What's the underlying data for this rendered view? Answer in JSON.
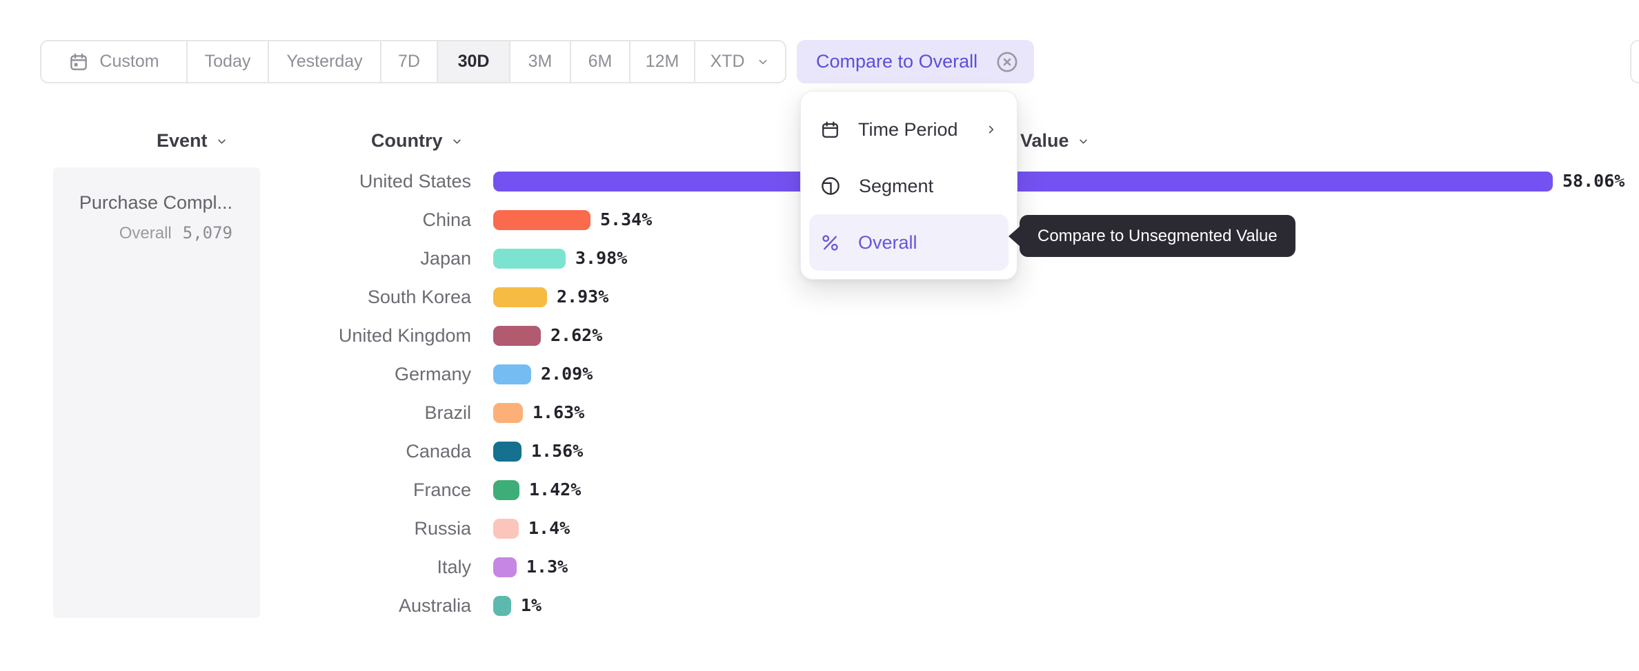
{
  "toolbar": {
    "ranges": [
      {
        "label": "Custom",
        "icon": "calendar"
      },
      {
        "label": "Today"
      },
      {
        "label": "Yesterday"
      },
      {
        "label": "7D"
      },
      {
        "label": "30D",
        "selected": true
      },
      {
        "label": "3M"
      },
      {
        "label": "6M"
      },
      {
        "label": "12M"
      },
      {
        "label": "XTD",
        "chevron": true
      }
    ],
    "compare_pill_label": "Compare to Overall"
  },
  "menu": {
    "items": [
      {
        "icon": "calendar",
        "label": "Time Period",
        "submenu": true
      },
      {
        "icon": "segment",
        "label": "Segment"
      },
      {
        "icon": "percent",
        "label": "Overall",
        "selected": true
      }
    ]
  },
  "tooltip": {
    "text": "Compare to Unsegmented Value"
  },
  "columns": {
    "event": "Event",
    "country": "Country",
    "value": "Value"
  },
  "event_card": {
    "name": "Purchase Compl...",
    "overall_label": "Overall",
    "overall_value": "5,079"
  },
  "colors": {
    "accent_purple": "#5B4EDC",
    "pill_background": "#E9E6FB",
    "menu_highlight": "#F2F0FB",
    "tooltip_background": "#2B2A33",
    "selected_segment_background": "#F2F2F4"
  },
  "chart_data": {
    "type": "bar",
    "orientation": "horizontal",
    "title": "",
    "xlabel": "Value",
    "ylabel": "Country",
    "xlim": [
      0,
      60
    ],
    "grid": false,
    "categories": [
      "United States",
      "China",
      "Japan",
      "South Korea",
      "United Kingdom",
      "Germany",
      "Brazil",
      "Canada",
      "France",
      "Russia",
      "Italy",
      "Australia"
    ],
    "values": [
      58.06,
      5.34,
      3.98,
      2.93,
      2.62,
      2.09,
      1.63,
      1.56,
      1.42,
      1.4,
      1.3,
      1
    ],
    "value_labels": [
      "58.06%",
      "5.34%",
      "3.98%",
      "2.93%",
      "2.62%",
      "2.09%",
      "1.63%",
      "1.56%",
      "1.42%",
      "1.4%",
      "1.3%",
      "1%"
    ],
    "colors": [
      "#7452F2",
      "#FA6B4D",
      "#7DE3D1",
      "#F6BB43",
      "#B15A70",
      "#75BCF2",
      "#FCB077",
      "#15718F",
      "#3EAE78",
      "#FCC5BC",
      "#C686E3",
      "#5CB9AD"
    ]
  }
}
